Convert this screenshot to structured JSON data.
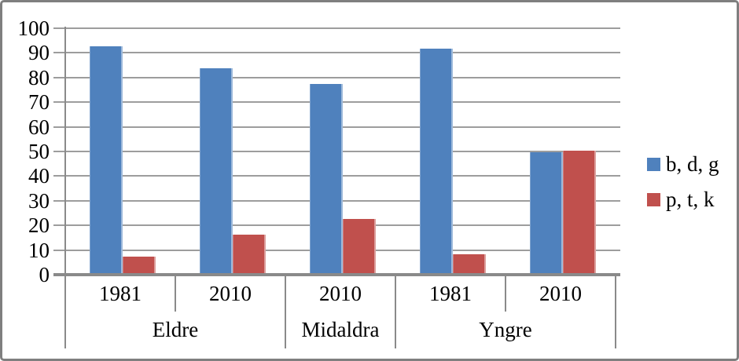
{
  "chart_data": {
    "type": "bar",
    "title": "",
    "categories": [
      "Eldre 1981",
      "Eldre 2010",
      "Midaldra 2010",
      "Yngre 1981",
      "Yngre 2010"
    ],
    "x_axis": {
      "year_cells": [
        "1981",
        "2010",
        "2010",
        "1981",
        "2010"
      ],
      "groups": [
        {
          "label": "Eldre",
          "span": 2
        },
        {
          "label": "Midaldra",
          "span": 1
        },
        {
          "label": "Yngre",
          "span": 2
        }
      ]
    },
    "y_axis": {
      "min": 0,
      "max": 100,
      "step": 10,
      "tick_labels": [
        "0",
        "10",
        "20",
        "30",
        "40",
        "50",
        "60",
        "70",
        "80",
        "90",
        "100"
      ]
    },
    "series": [
      {
        "name": "b, d, g",
        "color": "#4F81BD",
        "values": [
          92.8,
          83.8,
          77.4,
          91.6,
          49.7
        ]
      },
      {
        "name": "p, t, k",
        "color": "#C0504D",
        "values": [
          7.2,
          16.3,
          22.6,
          8.3,
          50.3
        ]
      }
    ],
    "legend_position": "right",
    "grid": true
  },
  "colors": {
    "gridline": "#9d9d9d",
    "axis": "#8a8a8a",
    "border": "#7f7f7f",
    "text": "#000000"
  }
}
